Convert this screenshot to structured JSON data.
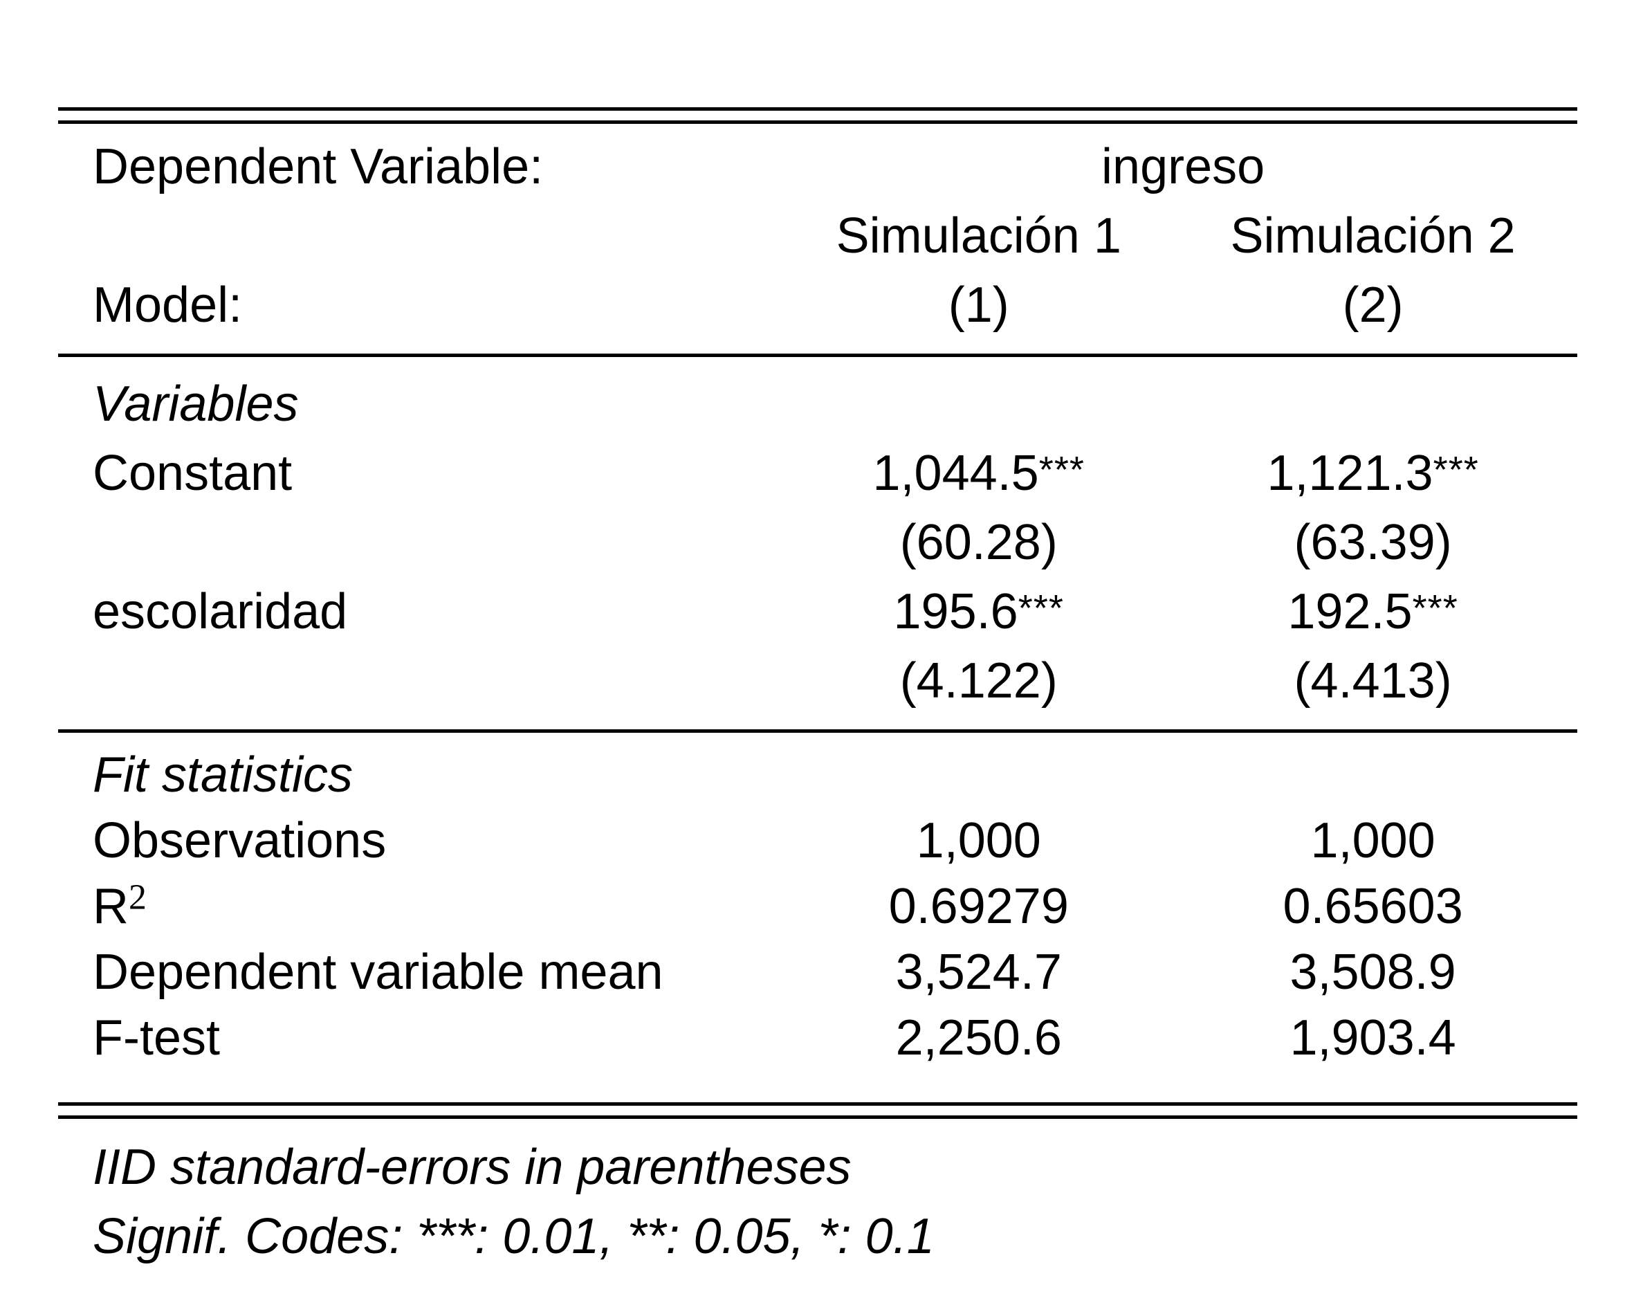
{
  "page": {
    "background": "#ffffff",
    "text_color": "#000000",
    "rule_color": "#000000"
  },
  "table": {
    "header": {
      "dep_var_label": "Dependent Variable:",
      "dep_var_value": "ingreso",
      "model_label": "Model:",
      "columns": [
        {
          "name": "Simulación 1",
          "number": "(1)"
        },
        {
          "name": "Simulación 2",
          "number": "(2)"
        }
      ]
    },
    "variables": {
      "title": "Variables",
      "rows": [
        {
          "label": "Constant",
          "estimates": [
            {
              "value": "1,044.5",
              "stars": "***"
            },
            {
              "value": "1,121.3",
              "stars": "***"
            }
          ],
          "std_errors": [
            "(60.28)",
            "(63.39)"
          ]
        },
        {
          "label": "escolaridad",
          "estimates": [
            {
              "value": "195.6",
              "stars": "***"
            },
            {
              "value": "192.5",
              "stars": "***"
            }
          ],
          "std_errors": [
            "(4.122)",
            "(4.413)"
          ]
        }
      ]
    },
    "fit": {
      "title": "Fit statistics",
      "rows": [
        {
          "label": "Observations",
          "values": [
            "1,000",
            "1,000"
          ]
        },
        {
          "label": "R",
          "label_sup": "2",
          "values": [
            "0.69279",
            "0.65603"
          ]
        },
        {
          "label": "Dependent variable mean",
          "values": [
            "3,524.7",
            "3,508.9"
          ]
        },
        {
          "label": "F-test",
          "values": [
            "2,250.6",
            "1,903.4"
          ]
        }
      ]
    },
    "notes": [
      "IID standard-errors in parentheses",
      "Signif. Codes: ***: 0.01, **: 0.05, *: 0.1"
    ]
  }
}
